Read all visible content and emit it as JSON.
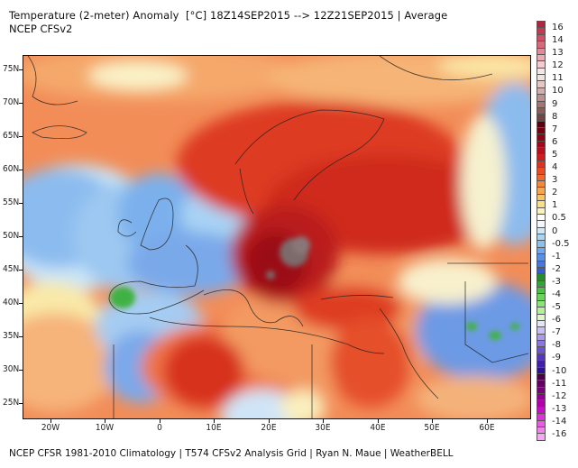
{
  "header": {
    "title": "Temperature (2-meter) Anomaly  [°C] 18Z14SEP2015 --> 12Z21SEP2015 | Average",
    "subtitle": "NCEP CFSv2"
  },
  "footer": {
    "credits": "NCEP CFSR 1981-2010 Climatology | T574 CFSv2 Analysis Grid | Ryan N. Maue | WeatherBELL"
  },
  "map": {
    "region": "Europe / North Africa / Middle East",
    "variable": "2-meter temperature anomaly",
    "units": "°C",
    "lat_labels": [
      "75N",
      "70N",
      "65N",
      "60N",
      "55N",
      "50N",
      "45N",
      "40N",
      "35N",
      "30N",
      "25N"
    ],
    "lon_labels": [
      "20W",
      "10W",
      "0",
      "10E",
      "20E",
      "30E",
      "40E",
      "50E",
      "60E"
    ],
    "features": {
      "warm_core": "Hungary/Romania gray hotspot (> +7 °C)",
      "cool_regions": [
        "British Isles & NE Atlantic",
        "Iberia (green < -3 °C)",
        "Western Russia (east edge)",
        "Iran/Afghanistan/Pakistan"
      ],
      "warm_regions": [
        "Scandinavia",
        "Eastern Europe",
        "Turkey",
        "Middle East",
        "Northern Algeria/Libya"
      ]
    }
  },
  "colorbar": {
    "labels": [
      "16",
      "14",
      "13",
      "12",
      "11",
      "10",
      "9",
      "8",
      "7",
      "6",
      "5",
      "4",
      "3",
      "2",
      "1",
      "0.5",
      "0",
      "-0.5",
      "-1",
      "-2",
      "-3",
      "-4",
      "-5",
      "-6",
      "-7",
      "-8",
      "-9",
      "-10",
      "-11",
      "-12",
      "-13",
      "-14",
      "-16"
    ],
    "colors": [
      "#b3243f",
      "#c23a55",
      "#cf5067",
      "#d66a7c",
      "#e08a97",
      "#ebaab2",
      "#f4cccf",
      "#f6e7e6",
      "#ede5dc",
      "#e3c8c6",
      "#d2aeac",
      "#bb918f",
      "#a17774",
      "#865e5b",
      "#6e4746",
      "#5c0010",
      "#730012",
      "#8a0515",
      "#a2081a",
      "#b90f1c",
      "#cd1d1f",
      "#dc3322",
      "#e84d28",
      "#ef6a2f",
      "#f3873c",
      "#f6a650",
      "#f7c46a",
      "#f7df8a",
      "#faf3be",
      "#ffffff",
      "#f4f8fd",
      "#cde8f8",
      "#a9d5f3",
      "#8cc0ee",
      "#72a8ea",
      "#5b8fe4",
      "#4976da",
      "#3a5ec9",
      "#2b8a2c",
      "#3aa13a",
      "#4fbe4a",
      "#69d35c",
      "#8ee27c",
      "#b6ef9e",
      "#dcf7cf",
      "#e8e4f7",
      "#c9bff0",
      "#a99be6",
      "#8b77db",
      "#6f55cd",
      "#5537bd",
      "#3f20a6",
      "#2e1292",
      "#4a0049",
      "#61005e",
      "#7a0076",
      "#94008f",
      "#b000aa",
      "#c90ec3",
      "#dc32d6",
      "#e85ce2",
      "#f083ea",
      "#f6a8f0"
    ]
  }
}
